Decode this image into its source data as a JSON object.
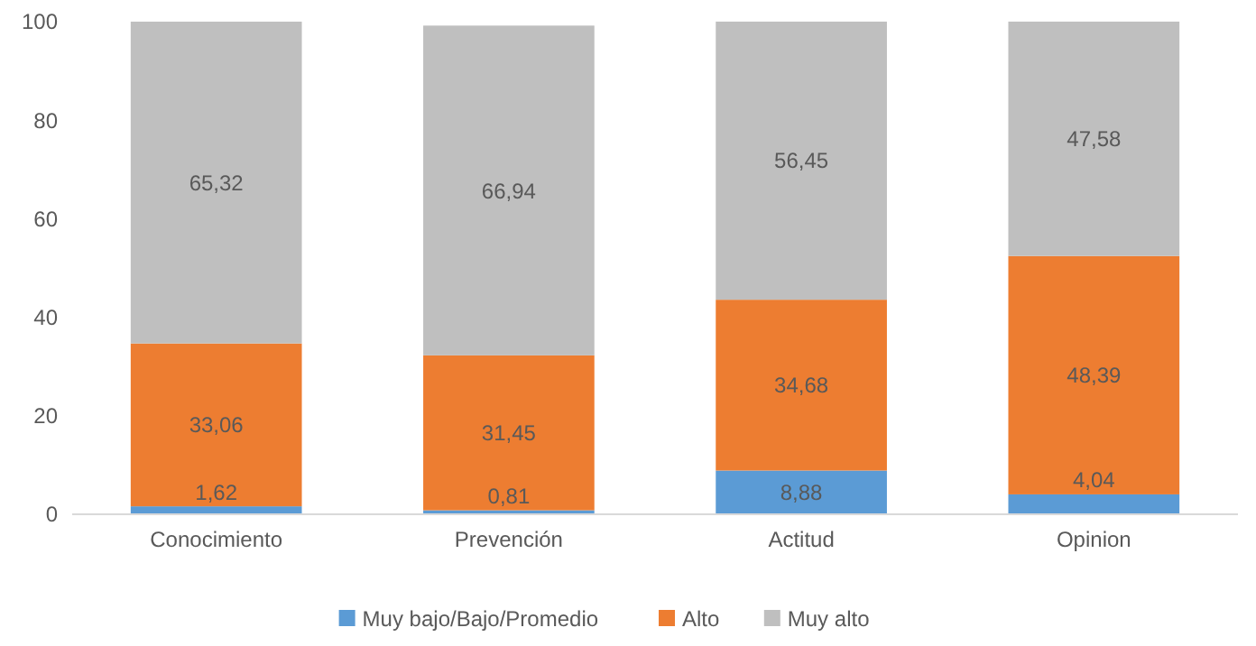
{
  "chart_data": {
    "type": "bar",
    "stacked": true,
    "categories": [
      "Conocimiento",
      "Prevención",
      "Actitud",
      "Opinion"
    ],
    "series": [
      {
        "name": "Muy bajo/Bajo/Promedio",
        "color": "#5b9bd5",
        "values": [
          1.62,
          0.81,
          8.88,
          4.04
        ],
        "value_labels": [
          "1,62",
          "0,81",
          "8,88",
          "4,04"
        ]
      },
      {
        "name": "Alto",
        "color": "#ed7d31",
        "values": [
          33.06,
          31.45,
          34.68,
          48.39
        ],
        "value_labels": [
          "33,06",
          "31,45",
          "34,68",
          "48,39"
        ]
      },
      {
        "name": "Muy alto",
        "color": "#bfbfbf",
        "values": [
          65.32,
          66.94,
          56.45,
          47.58
        ],
        "value_labels": [
          "65,32",
          "66,94",
          "56,45",
          "47,58"
        ]
      }
    ],
    "ylim": [
      0,
      100
    ],
    "yticks": [
      0,
      20,
      40,
      60,
      80,
      100
    ],
    "grid": false,
    "legend": "bottom"
  }
}
